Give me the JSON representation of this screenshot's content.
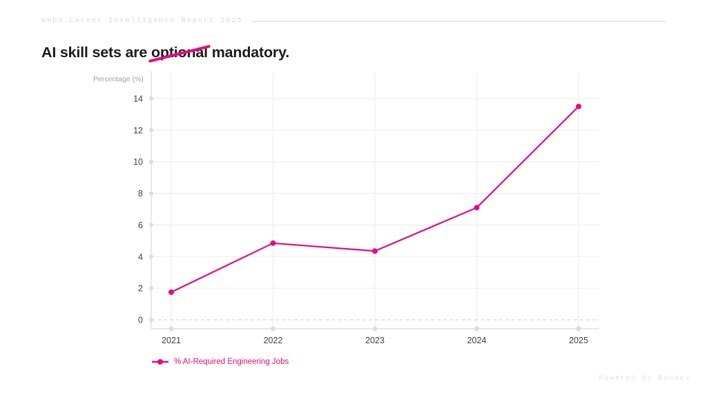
{
  "header": {
    "report_label": "Web3.Career Intelligence Report 2025"
  },
  "title": {
    "pre": "AI skill sets are ",
    "struck": "optional",
    "post": " mandatory."
  },
  "chart_data": {
    "type": "line",
    "categories": [
      "2021",
      "2022",
      "2023",
      "2024",
      "2025"
    ],
    "series": [
      {
        "name": "% AI-Required Engineering Jobs",
        "values": [
          1.75,
          4.85,
          4.35,
          7.1,
          13.5
        ]
      }
    ],
    "title": "",
    "xlabel": "",
    "ylabel": "Percentage (%)",
    "ylim": [
      0,
      14
    ],
    "yticks": [
      0,
      2,
      4,
      6,
      8,
      10,
      12,
      14
    ],
    "grid": true,
    "legend_position": "bottom-left"
  },
  "legend": {
    "label": "% AI-Required Engineering Jobs"
  },
  "footer": {
    "powered_by": "Powered by Bondex"
  },
  "colors": {
    "accent_pink": "#e50b80",
    "grid_line": "#efefef",
    "axis_line": "#e2e2e2",
    "axis_dot": "#dcdcdc",
    "zero_dash": "#d6d6d6",
    "tick_label": "#3f3f3f",
    "axis_title": "#9e9e9e"
  }
}
